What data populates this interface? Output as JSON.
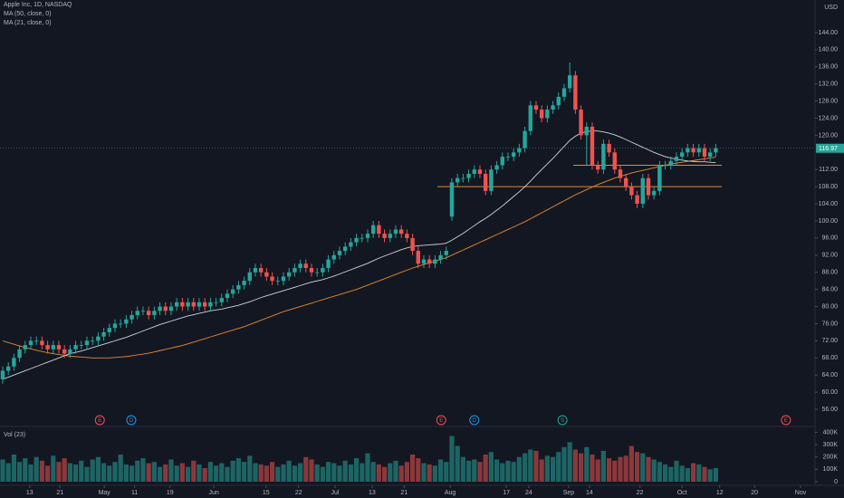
{
  "chart_data": {
    "type": "candlestick",
    "title": "Apple Inc, 1D, NASDAQ",
    "currency": "USD",
    "up_color": "#26a69a",
    "down_color": "#ef5350",
    "xlim": [
      -0.48,
      144.68
    ],
    "xticks": [
      {
        "value": 4.8,
        "label": "13"
      },
      {
        "value": 10.2,
        "label": "21"
      },
      {
        "value": 18.1,
        "label": "May"
      },
      {
        "value": 23.5,
        "label": "11"
      },
      {
        "value": 29.8,
        "label": "19"
      },
      {
        "value": 37.6,
        "label": "Jun"
      },
      {
        "value": 46.9,
        "label": "15"
      },
      {
        "value": 52.7,
        "label": "22"
      },
      {
        "value": 59.2,
        "label": "Jul"
      },
      {
        "value": 65.8,
        "label": "13"
      },
      {
        "value": 71.5,
        "label": "21"
      },
      {
        "value": 79.7,
        "label": "Aug"
      },
      {
        "value": 89.7,
        "label": "17"
      },
      {
        "value": 93.7,
        "label": "24"
      },
      {
        "value": 100.8,
        "label": "Sep"
      },
      {
        "value": 104.5,
        "label": "14"
      },
      {
        "value": 113.5,
        "label": "22"
      },
      {
        "value": 121,
        "label": "Oct"
      },
      {
        "value": 127.7,
        "label": "12"
      },
      {
        "value": 133.9,
        "label": "20"
      },
      {
        "value": 142.1,
        "label": "Nov"
      }
    ],
    "ylim": [
      52.2,
      151.6
    ],
    "yticks": [
      {
        "value": 56,
        "label": "56.00"
      },
      {
        "value": 60,
        "label": "60.00"
      },
      {
        "value": 64,
        "label": "64.00"
      },
      {
        "value": 68,
        "label": "68.00"
      },
      {
        "value": 72,
        "label": "72.00"
      },
      {
        "value": 76,
        "label": "76.00"
      },
      {
        "value": 80,
        "label": "80.00"
      },
      {
        "value": 84,
        "label": "84.00"
      },
      {
        "value": 88,
        "label": "88.00"
      },
      {
        "value": 92,
        "label": "92.00"
      },
      {
        "value": 96,
        "label": "96.00"
      },
      {
        "value": 100,
        "label": "100.00"
      },
      {
        "value": 104,
        "label": "104.00"
      },
      {
        "value": 108,
        "label": "108.00"
      },
      {
        "value": 112,
        "label": "112.00"
      },
      {
        "value": 120,
        "label": "120.00"
      },
      {
        "value": 124,
        "label": "124.00"
      },
      {
        "value": 128,
        "label": "128.00"
      },
      {
        "value": 132,
        "label": "132.00"
      },
      {
        "value": 136,
        "label": "136.00"
      },
      {
        "value": 140,
        "label": "140.00"
      },
      {
        "value": 144,
        "label": "144.00"
      }
    ],
    "open": [
      63,
      65,
      66,
      68,
      70,
      71,
      72,
      72,
      71,
      70,
      71,
      70,
      69,
      70,
      71,
      71,
      72,
      72,
      73,
      74,
      75,
      76,
      76,
      77,
      78,
      79,
      79,
      78,
      79,
      80,
      79,
      80,
      81,
      80,
      81,
      80,
      81,
      80,
      81,
      81,
      82,
      83,
      84,
      85,
      86,
      88,
      89,
      88,
      87,
      86,
      86,
      87,
      88,
      89,
      90,
      89,
      88,
      88,
      89,
      91,
      92,
      93,
      94,
      95,
      96,
      96,
      97,
      99,
      97,
      96,
      97,
      98,
      97,
      96,
      93,
      90,
      91,
      90,
      91,
      92,
      101,
      109,
      110,
      110,
      111,
      112,
      111,
      107,
      112,
      113,
      115,
      115,
      116,
      117,
      121,
      127,
      126,
      124,
      126,
      127,
      129,
      131,
      134,
      126,
      120,
      122,
      113,
      112,
      118,
      116,
      112,
      110,
      108,
      106,
      104,
      110,
      106,
      107,
      113,
      113,
      114,
      115,
      116,
      117,
      116,
      117,
      115,
      116
    ],
    "high": [
      66,
      67,
      69,
      71,
      72,
      73,
      73,
      73,
      72,
      72,
      72,
      71,
      71,
      72,
      72,
      73,
      73,
      74,
      75,
      76,
      77,
      77,
      78,
      79,
      80,
      80,
      80,
      80,
      81,
      81,
      81,
      82,
      82,
      82,
      82,
      82,
      82,
      82,
      82,
      83,
      84,
      85,
      86,
      87,
      89,
      90,
      90,
      89,
      88,
      87,
      88,
      89,
      90,
      91,
      91,
      90,
      89,
      90,
      92,
      93,
      94,
      95,
      96,
      97,
      97,
      98,
      100,
      100,
      98,
      98,
      99,
      99,
      98,
      97,
      94,
      92,
      92,
      92,
      93,
      94,
      110,
      111,
      111,
      112,
      113,
      113,
      112,
      113,
      114,
      116,
      116,
      117,
      118,
      122,
      128,
      128,
      127,
      127,
      128,
      130,
      132,
      137,
      135,
      127,
      123,
      123,
      114,
      119,
      119,
      117,
      113,
      111,
      109,
      107,
      111,
      111,
      108,
      114,
      114,
      115,
      116,
      117,
      118,
      118,
      118,
      118,
      117,
      118
    ],
    "low": [
      62,
      64,
      65,
      67,
      69,
      70,
      71,
      70,
      69,
      69,
      69,
      68,
      68,
      69,
      70,
      70,
      71,
      71,
      72,
      73,
      74,
      75,
      75,
      76,
      77,
      78,
      77,
      77,
      78,
      78,
      78,
      79,
      79,
      79,
      79,
      79,
      79,
      79,
      80,
      80,
      81,
      82,
      83,
      84,
      85,
      87,
      87,
      86,
      85,
      85,
      85,
      86,
      87,
      88,
      88,
      87,
      87,
      87,
      88,
      90,
      91,
      92,
      93,
      94,
      95,
      95,
      96,
      96,
      95,
      95,
      96,
      96,
      95,
      92,
      89,
      89,
      89,
      89,
      90,
      91,
      100,
      108,
      109,
      109,
      110,
      110,
      106,
      106,
      111,
      112,
      114,
      114,
      115,
      116,
      120,
      125,
      123,
      123,
      125,
      126,
      128,
      130,
      125,
      119,
      113,
      112,
      111,
      111,
      115,
      111,
      109,
      107,
      105,
      103,
      103,
      105,
      105,
      106,
      112,
      112,
      113,
      114,
      115,
      115,
      115,
      114,
      114,
      115
    ],
    "close": [
      65,
      66,
      68,
      70,
      71,
      72,
      72,
      71,
      70,
      71,
      70,
      69,
      70,
      71,
      71,
      72,
      72,
      73,
      74,
      75,
      76,
      76,
      77,
      78,
      79,
      79,
      78,
      79,
      80,
      79,
      80,
      81,
      80,
      81,
      80,
      81,
      80,
      81,
      81,
      82,
      83,
      84,
      85,
      86,
      88,
      89,
      88,
      87,
      86,
      86,
      87,
      88,
      89,
      90,
      89,
      88,
      88,
      89,
      91,
      92,
      93,
      94,
      95,
      96,
      96,
      97,
      99,
      97,
      96,
      97,
      98,
      97,
      96,
      93,
      90,
      91,
      90,
      91,
      92,
      93,
      109,
      110,
      110,
      111,
      112,
      111,
      107,
      112,
      113,
      115,
      115,
      116,
      117,
      121,
      127,
      126,
      124,
      126,
      127,
      129,
      131,
      134,
      126,
      120,
      122,
      113,
      112,
      118,
      116,
      112,
      110,
      108,
      106,
      104,
      110,
      106,
      107,
      113,
      113,
      114,
      115,
      116,
      117,
      116,
      117,
      115,
      116,
      116.97
    ],
    "overlays": [
      {
        "name": "MA (50, close, 0)",
        "color": "#e8892e",
        "values": [
          72,
          71.6,
          71.2,
          70.8,
          70.4,
          70.1,
          69.8,
          69.5,
          69.2,
          69,
          68.8,
          68.6,
          68.4,
          68.3,
          68.2,
          68.1,
          68,
          68,
          68,
          68,
          68.1,
          68.2,
          68.3,
          68.5,
          68.7,
          68.9,
          69.1,
          69.4,
          69.7,
          70,
          70.3,
          70.6,
          70.9,
          71.3,
          71.7,
          72.1,
          72.5,
          72.9,
          73.3,
          73.7,
          74.1,
          74.5,
          74.9,
          75.3,
          75.8,
          76.3,
          76.8,
          77.3,
          77.8,
          78.3,
          78.8,
          79.2,
          79.6,
          80,
          80.4,
          80.8,
          81.2,
          81.6,
          82,
          82.4,
          82.8,
          83.2,
          83.6,
          84,
          84.5,
          85,
          85.5,
          86,
          86.5,
          87,
          87.5,
          88,
          88.5,
          89,
          89.4,
          89.8,
          90.2,
          90.6,
          91,
          91.4,
          92,
          92.6,
          93.2,
          93.8,
          94.4,
          95,
          95.6,
          96.2,
          96.8,
          97.4,
          98,
          98.6,
          99.2,
          99.8,
          100.5,
          101.2,
          101.9,
          102.6,
          103.3,
          104,
          104.7,
          105.4,
          106.1,
          106.7,
          107.3,
          107.9,
          108.5,
          109,
          109.5,
          110,
          110.4,
          110.8,
          111.2,
          111.5,
          111.8,
          112.1,
          112.4,
          112.7,
          113,
          113.3,
          113.5,
          113.7,
          113.9,
          114.1,
          114.3,
          114.5,
          114.7,
          114.9
        ]
      },
      {
        "name": "MA (21, close, 0)",
        "color": "#d1d4dc",
        "values": [
          63,
          63.5,
          64,
          64.5,
          65,
          65.5,
          66,
          66.5,
          67,
          67.5,
          68,
          68.5,
          69,
          69.3,
          69.6,
          70,
          70.4,
          70.8,
          71.2,
          71.6,
          72,
          72.4,
          72.8,
          73.3,
          73.8,
          74.3,
          74.8,
          75.3,
          75.8,
          76.2,
          76.6,
          77,
          77.4,
          77.8,
          78.1,
          78.4,
          78.7,
          79,
          79.2,
          79.4,
          79.7,
          80,
          80.3,
          80.7,
          81.1,
          81.6,
          82.1,
          82.5,
          82.9,
          83.3,
          83.7,
          84.1,
          84.5,
          84.9,
          85.3,
          85.7,
          86,
          86.3,
          86.7,
          87.1,
          87.6,
          88.1,
          88.6,
          89.1,
          89.6,
          90.1,
          90.7,
          91.3,
          91.8,
          92.3,
          92.8,
          93.3,
          93.7,
          94,
          94.2,
          94.3,
          94.4,
          94.5,
          94.6,
          94.8,
          95.5,
          96.3,
          97.1,
          98,
          98.9,
          99.8,
          100.6,
          101.5,
          102.5,
          103.5,
          104.6,
          105.7,
          106.8,
          108,
          109.3,
          110.7,
          112,
          113.3,
          114.6,
          116,
          117.4,
          118.8,
          119.8,
          120.5,
          120.9,
          121,
          121,
          120.8,
          120.5,
          120.1,
          119.6,
          119,
          118.4,
          117.8,
          117.2,
          116.6,
          116,
          115.5,
          115,
          114.7,
          114.4,
          114.2,
          114,
          113.9,
          113.8,
          113.8,
          113.7,
          113.6
        ]
      }
    ],
    "hlines": [
      {
        "value": 108,
        "color": "#e8892e"
      },
      {
        "value": 113,
        "color": "#e8892e"
      }
    ],
    "events": [
      {
        "label": "E",
        "index": 17.3,
        "color": "#ef5350"
      },
      {
        "label": "D",
        "index": 22.9,
        "color": "#2196f3"
      },
      {
        "label": "E",
        "index": 78.1,
        "color": "#ef5350"
      },
      {
        "label": "D",
        "index": 84,
        "color": "#2196f3"
      },
      {
        "label": "S",
        "index": 99.7,
        "color": "#26a69a"
      },
      {
        "label": "E",
        "index": 139.5,
        "color": "#ef5350"
      }
    ],
    "volume": {
      "name": "Vol (23)",
      "ylim": [
        0,
        440000
      ],
      "yticks": [
        0,
        {
          "value": 100000,
          "label": "100K"
        },
        {
          "value": 200000,
          "label": "200K"
        },
        {
          "value": 300000,
          "label": "300K"
        },
        {
          "value": 400000,
          "label": "400K"
        }
      ],
      "values": [
        180000,
        150000,
        220000,
        160000,
        190000,
        140000,
        200000,
        170000,
        130000,
        210000,
        160000,
        190000,
        150000,
        140000,
        170000,
        120000,
        180000,
        200000,
        150000,
        130000,
        160000,
        220000,
        140000,
        130000,
        170000,
        190000,
        150000,
        160000,
        120000,
        140000,
        180000,
        130000,
        150000,
        120000,
        170000,
        140000,
        110000,
        160000,
        130000,
        150000,
        120000,
        170000,
        190000,
        160000,
        210000,
        150000,
        140000,
        130000,
        160000,
        120000,
        140000,
        170000,
        130000,
        150000,
        200000,
        180000,
        140000,
        120000,
        160000,
        150000,
        130000,
        170000,
        140000,
        190000,
        150000,
        230000,
        160000,
        140000,
        120000,
        150000,
        170000,
        130000,
        160000,
        220000,
        190000,
        150000,
        140000,
        130000,
        180000,
        160000,
        370000,
        290000,
        200000,
        170000,
        180000,
        160000,
        220000,
        240000,
        180000,
        150000,
        170000,
        160000,
        200000,
        230000,
        260000,
        250000,
        180000,
        210000,
        200000,
        240000,
        280000,
        320000,
        260000,
        230000,
        280000,
        220000,
        180000,
        250000,
        190000,
        170000,
        200000,
        210000,
        290000,
        240000,
        230000,
        200000,
        180000,
        160000,
        140000,
        120000,
        170000,
        130000,
        110000,
        150000,
        140000,
        120000,
        100000,
        110000
      ]
    }
  }
}
